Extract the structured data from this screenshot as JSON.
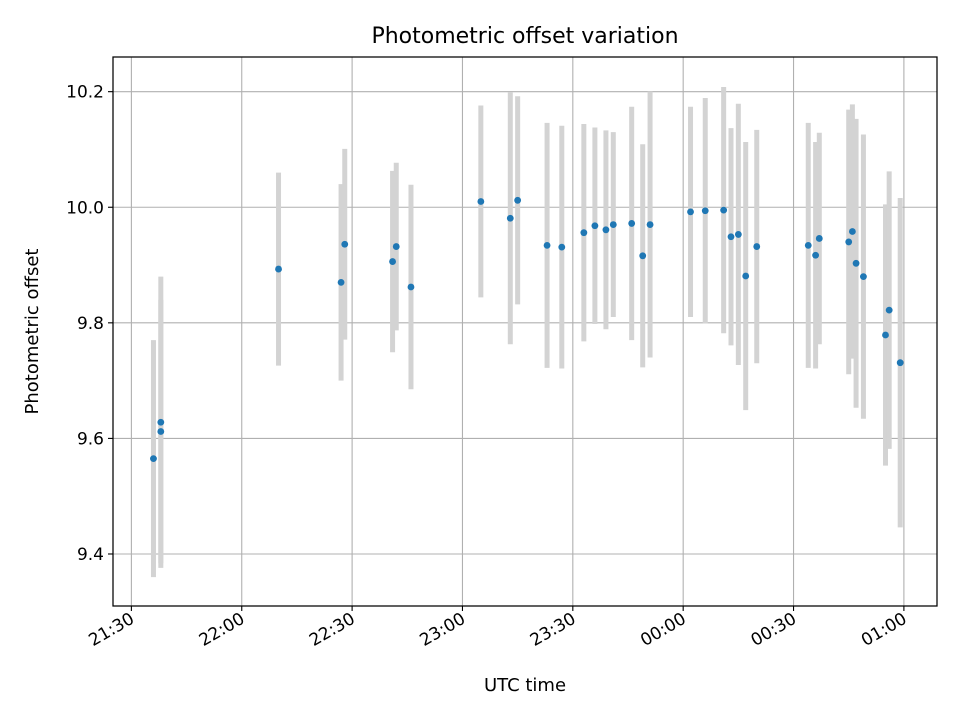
{
  "chart_data": {
    "type": "scatter",
    "title": "Photometric offset variation",
    "xlabel": "UTC time",
    "ylabel": "Photometric offset",
    "x_unit": "UTC time (HH:MM)",
    "xlim": [
      "21:25",
      "01:09"
    ],
    "ylim": [
      9.31,
      10.26
    ],
    "grid": true,
    "error_bar_color": "#d3d3d3",
    "marker_color": "#1f77b4",
    "x_ticks": [
      "21:30",
      "22:00",
      "22:30",
      "23:00",
      "23:30",
      "00:00",
      "00:30",
      "01:00"
    ],
    "y_ticks": [
      "9.4",
      "9.6",
      "9.8",
      "10.0",
      "10.2"
    ],
    "points": [
      {
        "x": "21:36",
        "y": 9.565,
        "err": 0.205
      },
      {
        "x": "21:38",
        "y": 9.612,
        "err": 0.228
      },
      {
        "x": "21:38",
        "y": 9.628,
        "err": 0.252
      },
      {
        "x": "22:10",
        "y": 9.893,
        "err": 0.167
      },
      {
        "x": "22:27",
        "y": 9.87,
        "err": 0.17
      },
      {
        "x": "22:28",
        "y": 9.936,
        "err": 0.165
      },
      {
        "x": "22:41",
        "y": 9.906,
        "err": 0.157
      },
      {
        "x": "22:42",
        "y": 9.932,
        "err": 0.145
      },
      {
        "x": "22:46",
        "y": 9.862,
        "err": 0.177
      },
      {
        "x": "23:05",
        "y": 10.01,
        "err": 0.166
      },
      {
        "x": "23:13",
        "y": 9.981,
        "err": 0.218
      },
      {
        "x": "23:15",
        "y": 10.012,
        "err": 0.18
      },
      {
        "x": "23:23",
        "y": 9.934,
        "err": 0.212
      },
      {
        "x": "23:27",
        "y": 9.931,
        "err": 0.21
      },
      {
        "x": "23:33",
        "y": 9.956,
        "err": 0.188
      },
      {
        "x": "23:36",
        "y": 9.968,
        "err": 0.17
      },
      {
        "x": "23:39",
        "y": 9.961,
        "err": 0.172
      },
      {
        "x": "23:41",
        "y": 9.97,
        "err": 0.16
      },
      {
        "x": "23:46",
        "y": 9.972,
        "err": 0.202
      },
      {
        "x": "23:49",
        "y": 9.916,
        "err": 0.193
      },
      {
        "x": "23:51",
        "y": 9.97,
        "err": 0.23
      },
      {
        "x": "00:02",
        "y": 9.992,
        "err": 0.182
      },
      {
        "x": "00:06",
        "y": 9.994,
        "err": 0.195
      },
      {
        "x": "00:11",
        "y": 9.995,
        "err": 0.213
      },
      {
        "x": "00:13",
        "y": 9.949,
        "err": 0.188
      },
      {
        "x": "00:15",
        "y": 9.953,
        "err": 0.226
      },
      {
        "x": "00:17",
        "y": 9.881,
        "err": 0.232
      },
      {
        "x": "00:20",
        "y": 9.932,
        "err": 0.202
      },
      {
        "x": "00:34",
        "y": 9.934,
        "err": 0.212
      },
      {
        "x": "00:36",
        "y": 9.917,
        "err": 0.196
      },
      {
        "x": "00:37",
        "y": 9.946,
        "err": 0.183
      },
      {
        "x": "00:45",
        "y": 9.94,
        "err": 0.229
      },
      {
        "x": "00:46",
        "y": 9.958,
        "err": 0.22
      },
      {
        "x": "00:47",
        "y": 9.903,
        "err": 0.25
      },
      {
        "x": "00:49",
        "y": 9.88,
        "err": 0.246
      },
      {
        "x": "00:55",
        "y": 9.779,
        "err": 0.226
      },
      {
        "x": "00:56",
        "y": 9.822,
        "err": 0.24
      },
      {
        "x": "00:59",
        "y": 9.731,
        "err": 0.285
      }
    ]
  }
}
